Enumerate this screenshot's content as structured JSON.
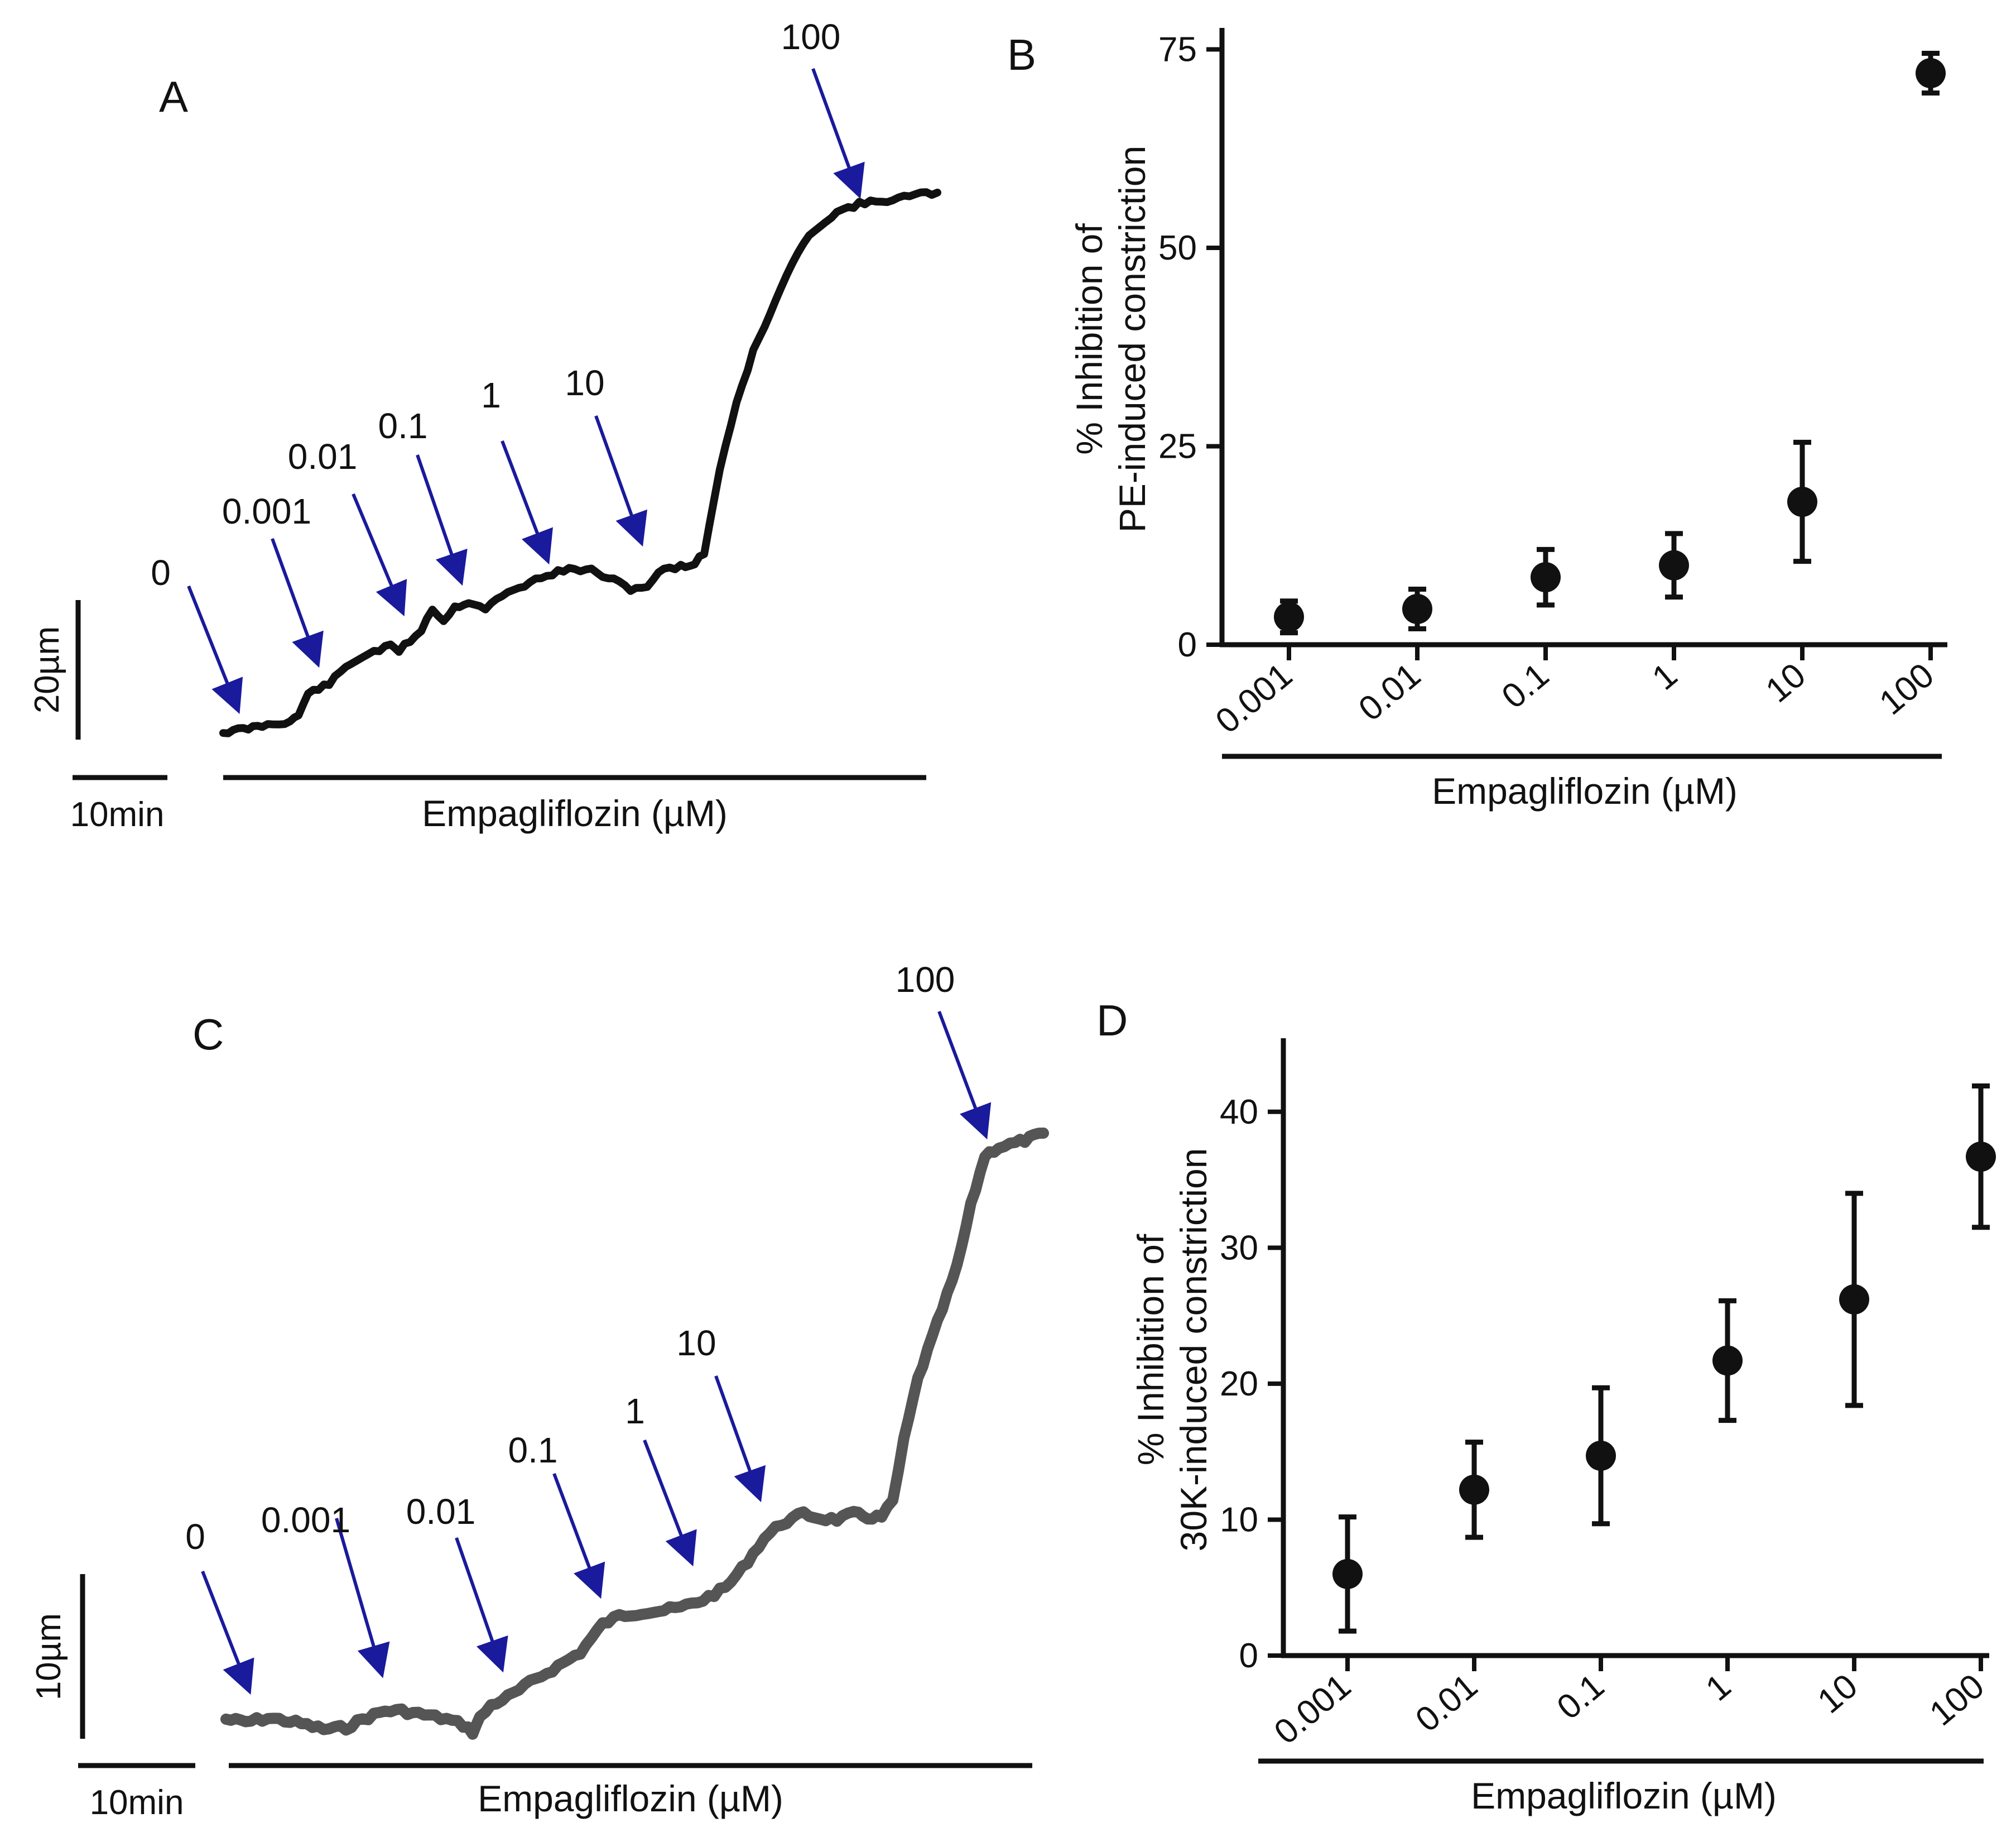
{
  "colors": {
    "trace_a": "#111111",
    "trace_c": "#555555",
    "arrow": "#1a1a9c",
    "axis": "#111111",
    "marker": "#111111"
  },
  "panel_a": {
    "label": "A",
    "concentrations": [
      "0",
      "0.001",
      "0.01",
      "0.1",
      "1",
      "10",
      "100"
    ],
    "scale_y": "20µm",
    "scale_x": "10min",
    "xlabel": "Empagliflozin (µM)"
  },
  "panel_c": {
    "label": "C",
    "concentrations": [
      "0",
      "0.001",
      "0.01",
      "0.1",
      "1",
      "10",
      "100"
    ],
    "scale_y": "10µm",
    "scale_x": "10min",
    "xlabel": "Empagliflozin (µM)"
  },
  "chart_data": [
    {
      "panel": "B",
      "type": "scatter",
      "title": "",
      "categories": [
        "0.001",
        "0.01",
        "0.1",
        "1",
        "10",
        "100"
      ],
      "values": [
        3.5,
        4.5,
        8.5,
        10,
        18,
        72
      ],
      "errors": [
        2,
        2.5,
        3.5,
        4,
        7.5,
        2.5
      ],
      "xlabel": "Empagliflozin (µM)",
      "ylabel_line1": "% Inhibition of",
      "ylabel_line2": "PE-induced constriction",
      "yticks": [
        0,
        25,
        50,
        75
      ],
      "ylim": [
        0,
        77
      ],
      "grid": false
    },
    {
      "panel": "D",
      "type": "scatter",
      "title": "",
      "categories": [
        "0.001",
        "0.01",
        "0.1",
        "1",
        "10",
        "100"
      ],
      "values": [
        6,
        12.2,
        14.7,
        21.7,
        26.2,
        36.7
      ],
      "errors": [
        4.2,
        3.5,
        5,
        4.4,
        7.8,
        5.2
      ],
      "xlabel": "Empagliflozin (µM)",
      "ylabel_line1": "% Inhibition of",
      "ylabel_line2": "30K-induced constriction",
      "yticks": [
        0,
        10,
        20,
        30,
        40
      ],
      "ylim": [
        0,
        45
      ],
      "grid": false
    }
  ]
}
